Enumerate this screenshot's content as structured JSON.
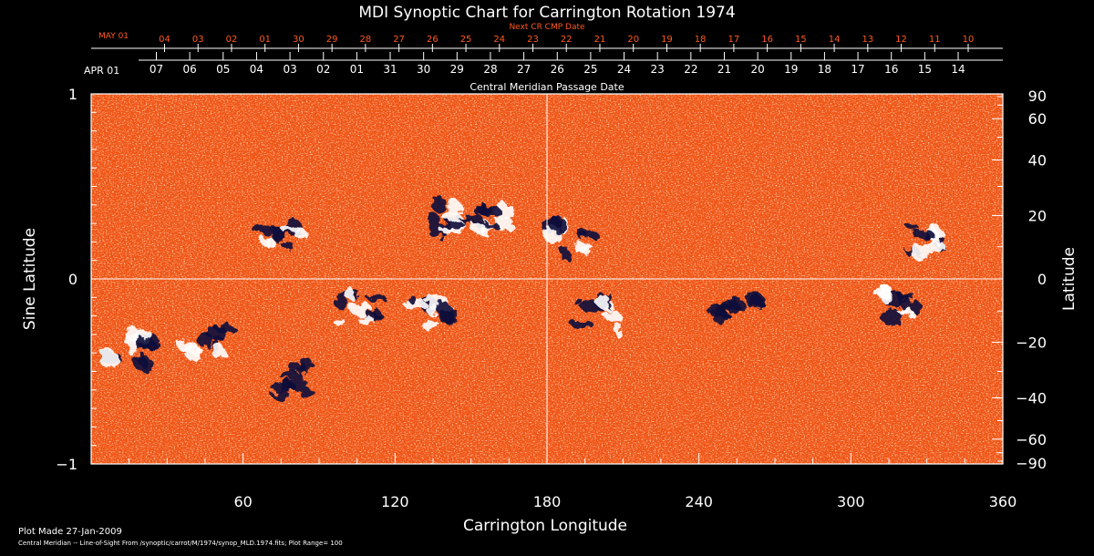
{
  "chart_data": {
    "type": "heatmap",
    "title": "MDI Synoptic Chart for Carrington Rotation 1974",
    "xlabel": "Carrington Longitude",
    "ylabel_left": "Sine Latitude",
    "ylabel_right": "Latitude",
    "xlim": [
      0,
      360
    ],
    "ylim": [
      -1,
      1
    ],
    "x_ticks": [
      "60",
      "120",
      "180",
      "240",
      "300",
      "360"
    ],
    "x_tick_values": [
      60,
      120,
      180,
      240,
      300,
      360
    ],
    "y_ticks_left": [
      "1",
      "0",
      "−1"
    ],
    "y_tick_values_left": [
      1,
      0,
      -1
    ],
    "y_ticks_right": [
      "90",
      "60",
      "40",
      "20",
      "0",
      "−20",
      "−40",
      "−60",
      "−90"
    ],
    "y_tick_values_right": [
      90,
      60,
      40,
      20,
      0,
      -20,
      -40,
      -60,
      -90
    ],
    "top_axis_title": "Central Meridian Passage Date",
    "top_axis_start_label": "APR 01",
    "top_axis_dates": [
      "07",
      "06",
      "05",
      "04",
      "03",
      "02",
      "01",
      "31",
      "30",
      "29",
      "28",
      "27",
      "26",
      "25",
      "24",
      "23",
      "22",
      "21",
      "20",
      "19",
      "18",
      "17",
      "16",
      "15",
      "14"
    ],
    "top2_axis_title": "Next CR CMP Date",
    "top2_axis_start_label": "MAY 01",
    "top2_axis_dates": [
      "04",
      "03",
      "02",
      "01",
      "30",
      "29",
      "28",
      "27",
      "26",
      "25",
      "24",
      "23",
      "22",
      "21",
      "20",
      "19",
      "18",
      "17",
      "16",
      "15",
      "14",
      "13",
      "12",
      "11",
      "10"
    ],
    "crosshair": {
      "x": 180,
      "y": 0
    },
    "colors": {
      "background_field": "#f05a14",
      "positive_polarity": "#ffffff",
      "negative_polarity": "#0a0a3a",
      "next_cr_axis": "#ff5a1e",
      "axis": "#ffffff"
    },
    "active_regions": [
      {
        "lon": 75,
        "sinlat": 0.25,
        "polarity": "mixed"
      },
      {
        "lon": 140,
        "sinlat": 0.33,
        "polarity": "mixed"
      },
      {
        "lon": 155,
        "sinlat": 0.3,
        "polarity": "mixed"
      },
      {
        "lon": 190,
        "sinlat": 0.22,
        "polarity": "mixed"
      },
      {
        "lon": 330,
        "sinlat": 0.2,
        "polarity": "mixed"
      },
      {
        "lon": 105,
        "sinlat": -0.15,
        "polarity": "mixed"
      },
      {
        "lon": 135,
        "sinlat": -0.18,
        "polarity": "mixed"
      },
      {
        "lon": 200,
        "sinlat": -0.2,
        "polarity": "mixed"
      },
      {
        "lon": 255,
        "sinlat": -0.15,
        "polarity": "negative"
      },
      {
        "lon": 320,
        "sinlat": -0.15,
        "polarity": "mixed"
      },
      {
        "lon": 15,
        "sinlat": -0.38,
        "polarity": "mixed"
      },
      {
        "lon": 45,
        "sinlat": -0.35,
        "polarity": "mixed"
      },
      {
        "lon": 80,
        "sinlat": -0.55,
        "polarity": "negative"
      }
    ]
  },
  "footer": {
    "plot_made": "Plot Made 27-Jan-2009",
    "source_line": "Central Meridian -- Line-of-Sight From /synoptic/carrot/M/1974/synop_MLD.1974.fits; Plot Range= 100"
  }
}
